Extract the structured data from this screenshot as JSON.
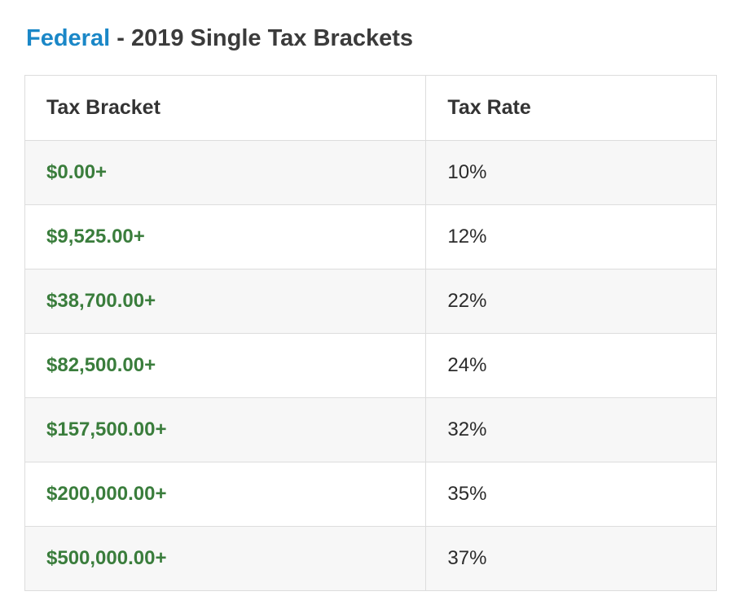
{
  "page": {
    "title": {
      "highlight": "Federal",
      "rest": " - 2019 Single Tax Brackets"
    }
  },
  "colors": {
    "title_highlight": "#1a87c7",
    "title_text": "#3b3b3b",
    "bracket_text": "#3a7d3c",
    "rate_text": "#2b2b2b",
    "row_alt_background": "#f7f7f7",
    "table_border": "#dddddd"
  },
  "table": {
    "headers": {
      "bracket": "Tax Bracket",
      "rate": "Tax Rate"
    },
    "rows": [
      {
        "bracket": "$0.00+",
        "rate": "10%"
      },
      {
        "bracket": "$9,525.00+",
        "rate": "12%"
      },
      {
        "bracket": "$38,700.00+",
        "rate": "22%"
      },
      {
        "bracket": "$82,500.00+",
        "rate": "24%"
      },
      {
        "bracket": "$157,500.00+",
        "rate": "32%"
      },
      {
        "bracket": "$200,000.00+",
        "rate": "35%"
      },
      {
        "bracket": "$500,000.00+",
        "rate": "37%"
      }
    ]
  },
  "chart_data": {
    "type": "table",
    "title": "Federal - 2019 Single Tax Brackets",
    "columns": [
      "Tax Bracket",
      "Tax Rate"
    ],
    "rows": [
      [
        "$0.00+",
        "10%"
      ],
      [
        "$9,525.00+",
        "12%"
      ],
      [
        "$38,700.00+",
        "22%"
      ],
      [
        "$82,500.00+",
        "24%"
      ],
      [
        "$157,500.00+",
        "32%"
      ],
      [
        "$200,000.00+",
        "35%"
      ],
      [
        "$500,000.00+",
        "37%"
      ]
    ],
    "bracket_lower_bounds_usd": [
      0,
      9525,
      38700,
      82500,
      157500,
      200000,
      500000
    ],
    "rates_percent": [
      10,
      12,
      22,
      24,
      32,
      35,
      37
    ]
  }
}
